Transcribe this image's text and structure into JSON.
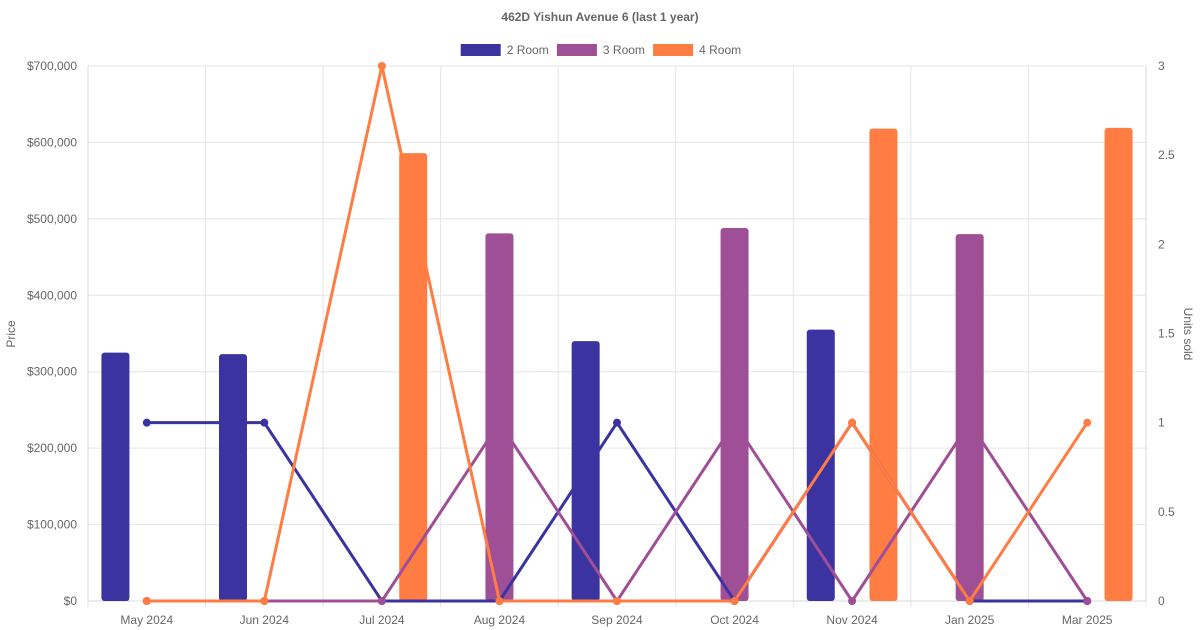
{
  "chart_data": {
    "type": "bar+line",
    "title": "462D Yishun Avenue 6 (last 1 year)",
    "categories": [
      "May 2024",
      "Jun 2024",
      "Jul 2024",
      "Aug 2024",
      "Sep 2024",
      "Oct 2024",
      "Nov 2024",
      "Jan 2025",
      "Mar 2025"
    ],
    "y_left": {
      "label": "Price",
      "range": [
        0,
        700000
      ],
      "ticks": [
        0,
        100000,
        200000,
        300000,
        400000,
        500000,
        600000,
        700000
      ],
      "tick_labels": [
        "$0",
        "$100,000",
        "$200,000",
        "$300,000",
        "$400,000",
        "$500,000",
        "$600,000",
        "$700,000"
      ]
    },
    "y_right": {
      "label": "Units sold",
      "range": [
        0,
        3
      ],
      "ticks": [
        0,
        0.5,
        1,
        1.5,
        2,
        2.5,
        3
      ],
      "tick_labels": [
        "0",
        "0.5",
        "1",
        "1.5",
        "2",
        "2.5",
        "3"
      ]
    },
    "legend_position": "top-center",
    "grid": true,
    "series": [
      {
        "name": "2 Room",
        "color": "#3a33a0",
        "prices": [
          325000,
          323000,
          null,
          null,
          340000,
          null,
          355000,
          null,
          null
        ],
        "units": [
          1,
          1,
          0,
          0,
          1,
          0,
          1,
          0,
          0
        ]
      },
      {
        "name": "3 Room",
        "color": "#9f4f95",
        "prices": [
          null,
          null,
          null,
          481000,
          null,
          488000,
          null,
          480000,
          null
        ],
        "units": [
          0,
          0,
          0,
          1,
          0,
          1,
          0,
          1,
          0
        ]
      },
      {
        "name": "4 Room",
        "color": "#ff7c43",
        "prices": [
          null,
          null,
          586000,
          null,
          null,
          null,
          618000,
          null,
          619000
        ],
        "units": [
          0,
          0,
          3,
          0,
          0,
          0,
          1,
          0,
          1
        ]
      }
    ]
  }
}
